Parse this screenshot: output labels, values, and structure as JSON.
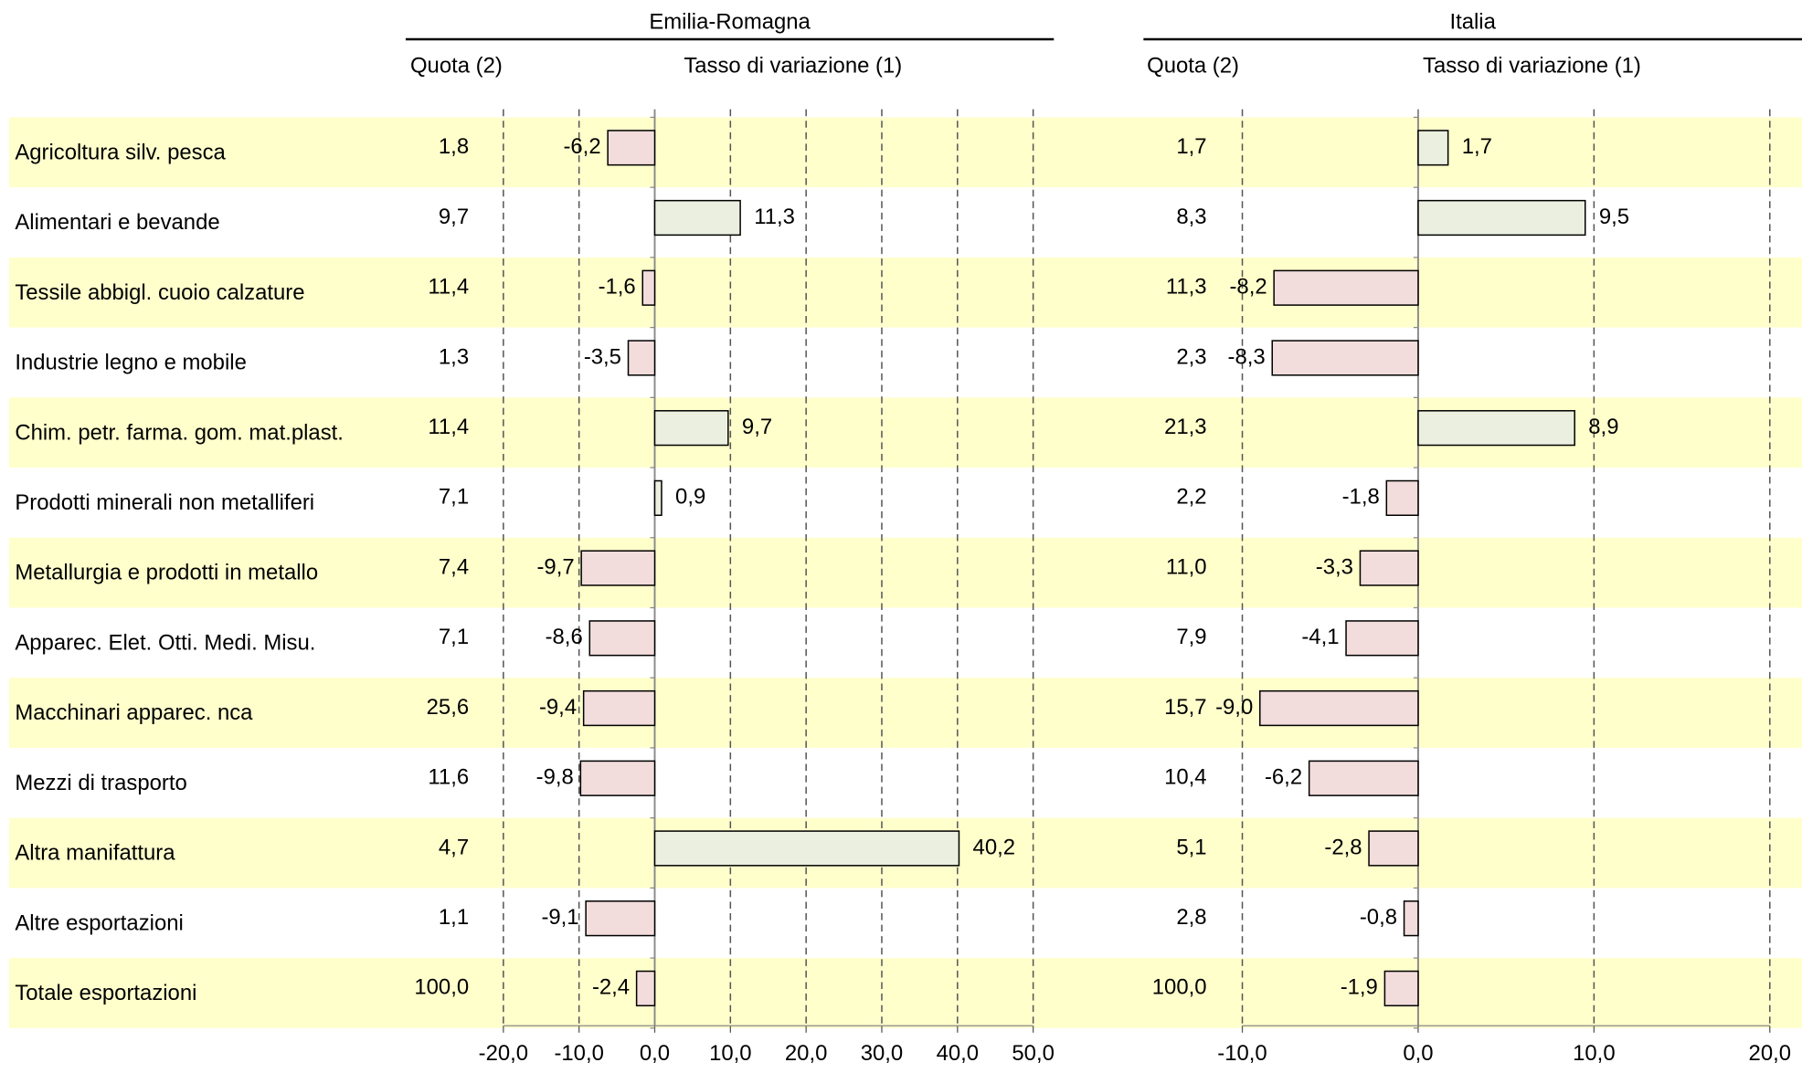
{
  "chart_data": [
    {
      "type": "bar",
      "orientation": "horizontal",
      "title": "Emilia-Romagna",
      "share_header": "Quota (2)",
      "axis_label": "Tasso di variazione (1)",
      "categories": [
        "Agricoltura silv. pesca",
        "Alimentari e bevande",
        "Tessile abbigl. cuoio calzature",
        "Industrie legno e mobile",
        "Chim. petr. farma. gom. mat.plast.",
        "Prodotti minerali non metalliferi",
        "Metallurgia e prodotti in metallo",
        "Apparec. Elet. Otti. Medi. Misu.",
        "Macchinari apparec. nca",
        "Mezzi di trasporto",
        "Altra manifattura",
        "Altre esportazioni",
        "Totale esportazioni"
      ],
      "shares": [
        "1,8",
        "9,7",
        "11,4",
        "1,3",
        "11,4",
        "7,1",
        "7,4",
        "7,1",
        "25,6",
        "11,6",
        "4,7",
        "1,1",
        "100,0"
      ],
      "values": [
        -6.2,
        11.3,
        -1.6,
        -3.5,
        9.7,
        0.9,
        -9.7,
        -8.6,
        -9.4,
        -9.8,
        40.2,
        -9.1,
        -2.4
      ],
      "value_labels": [
        "-6,2",
        "11,3",
        "-1,6",
        "-3,5",
        "9,7",
        "0,9",
        "-9,7",
        "-8,6",
        "-9,4",
        "-9,8",
        "40,2",
        "-9,1",
        "-2,4"
      ],
      "xlim": [
        -20,
        50
      ],
      "xticks": [
        {
          "value": -20,
          "label": "-20,0"
        },
        {
          "value": -10,
          "label": "-10,0"
        },
        {
          "value": 0,
          "label": "0,0"
        },
        {
          "value": 10,
          "label": "10,0"
        },
        {
          "value": 20,
          "label": "20,0"
        },
        {
          "value": 30,
          "label": "30,0"
        },
        {
          "value": 40,
          "label": "40,0"
        },
        {
          "value": 50,
          "label": "50,0"
        }
      ],
      "grid": true,
      "positive_color": "#ebefdf",
      "negative_color": "#f2dcdc",
      "negative_label_color": "#ff0000"
    },
    {
      "type": "bar",
      "orientation": "horizontal",
      "title": "Italia",
      "share_header": "Quota (2)",
      "axis_label": "Tasso di variazione (1)",
      "shares": [
        "1,7",
        "8,3",
        "11,3",
        "2,3",
        "21,3",
        "2,2",
        "11,0",
        "7,9",
        "15,7",
        "10,4",
        "5,1",
        "2,8",
        "100,0"
      ],
      "values": [
        1.7,
        9.5,
        -8.2,
        -8.3,
        8.9,
        -1.8,
        -3.3,
        -4.1,
        -9.0,
        -6.2,
        -2.8,
        -0.8,
        -1.9
      ],
      "value_labels": [
        "1,7",
        "9,5",
        "-8,2",
        "-8,3",
        "8,9",
        "-1,8",
        "-3,3",
        "-4,1",
        "-9,0",
        "-6,2",
        "-2,8",
        "-0,8",
        "-1,9"
      ],
      "xlim": [
        -10,
        20
      ],
      "xticks": [
        {
          "value": -10,
          "label": "-10,0"
        },
        {
          "value": 0,
          "label": "0,0"
        },
        {
          "value": 10,
          "label": "10,0"
        },
        {
          "value": 20,
          "label": "20,0"
        }
      ],
      "grid": true,
      "positive_color": "#ebefdf",
      "negative_color": "#f2dcdc",
      "negative_label_color": "#ff0000"
    }
  ]
}
